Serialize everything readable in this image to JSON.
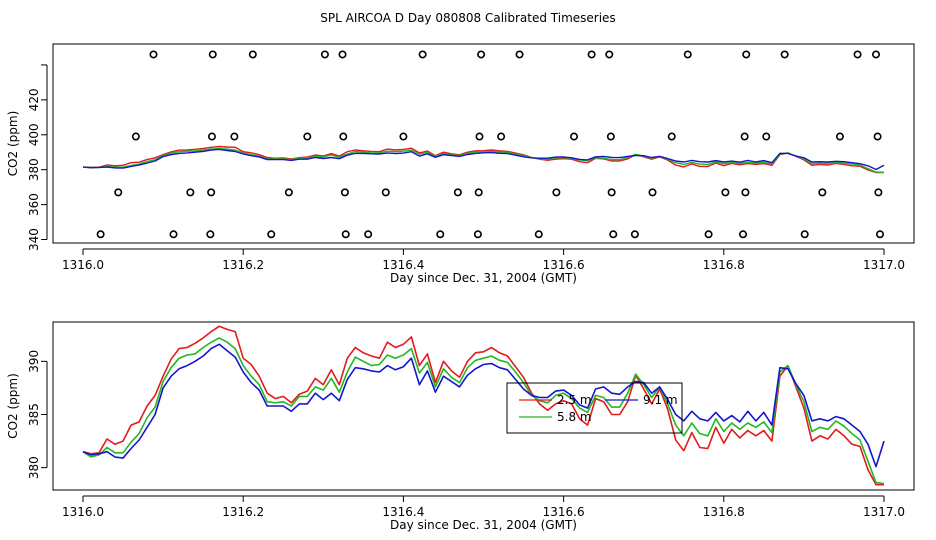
{
  "title": "SPL AIRCOA D  Day 080808  Calibrated Timeseries",
  "colors": {
    "red": "#e41a1c",
    "green": "#22b822",
    "blue": "#1515d0",
    "axis": "#000000"
  },
  "chart_data": [
    {
      "type": "scatter+line",
      "xlabel": "Day since Dec. 31, 2004 (GMT)",
      "ylabel": "CO2 (ppm)",
      "xlim": [
        1316.0,
        1317.0
      ],
      "ylim": [
        338,
        452
      ],
      "xticks": [
        1316.0,
        1316.2,
        1316.4,
        1316.6,
        1316.8,
        1317.0
      ],
      "xtick_labels": [
        "1316.0",
        "1316.2",
        "1316.4",
        "1316.6",
        "1316.8",
        "1317.0"
      ],
      "yticks": [
        340,
        360,
        380,
        400,
        420,
        440
      ],
      "ytick_labels": [
        "340",
        "360",
        "380",
        "400",
        "420",
        ""
      ],
      "points": {
        "x": [
          1316.088,
          1316.162,
          1316.212,
          1316.302,
          1316.324,
          1316.424,
          1316.497,
          1316.545,
          1316.635,
          1316.657,
          1316.755,
          1316.828,
          1316.876,
          1316.967,
          1316.99,
          1316.066,
          1316.161,
          1316.189,
          1316.28,
          1316.325,
          1316.4,
          1316.495,
          1316.522,
          1316.613,
          1316.659,
          1316.735,
          1316.826,
          1316.853,
          1316.945,
          1316.992,
          1316.044,
          1316.134,
          1316.16,
          1316.257,
          1316.327,
          1316.378,
          1316.468,
          1316.494,
          1316.591,
          1316.66,
          1316.711,
          1316.802,
          1316.827,
          1316.923,
          1316.993,
          1316.022,
          1316.113,
          1316.159,
          1316.235,
          1316.328,
          1316.356,
          1316.446,
          1316.493,
          1316.569,
          1316.662,
          1316.689,
          1316.781,
          1316.824,
          1316.901,
          1316.995
        ],
        "y": [
          446,
          446,
          446,
          446,
          446,
          446,
          446,
          446,
          446,
          446,
          446,
          446,
          446,
          446,
          446,
          399,
          399,
          399,
          399,
          399,
          399,
          399,
          399,
          399,
          399,
          399,
          399,
          399,
          399,
          399,
          367,
          367,
          367,
          367,
          367,
          367,
          367,
          367,
          367,
          367,
          367,
          367,
          367,
          367,
          367,
          343,
          343,
          343,
          343,
          343,
          343,
          343,
          343,
          343,
          343,
          343,
          343,
          343,
          343,
          343
        ]
      }
    },
    {
      "type": "line",
      "xlabel": "Day since Dec. 31, 2004 (GMT)",
      "ylabel": "CO2 (ppm)",
      "xlim": [
        1316.0,
        1317.0
      ],
      "ylim": [
        377.9,
        393.7
      ],
      "xticks": [
        1316.0,
        1316.2,
        1316.4,
        1316.6,
        1316.8,
        1317.0
      ],
      "xtick_labels": [
        "1316.0",
        "1316.2",
        "1316.4",
        "1316.6",
        "1316.8",
        "1317.0"
      ],
      "yticks": [
        380,
        385,
        390
      ],
      "ytick_labels": [
        "380",
        "385",
        "390"
      ],
      "legend": {
        "placement": "center-right",
        "entries": [
          "2.5 m",
          "9.1 m",
          "5.8 m"
        ]
      },
      "x": [
        1316.0,
        1316.01,
        1316.02,
        1316.03,
        1316.04,
        1316.05,
        1316.06,
        1316.07,
        1316.08,
        1316.09,
        1316.1,
        1316.11,
        1316.12,
        1316.13,
        1316.14,
        1316.15,
        1316.16,
        1316.17,
        1316.18,
        1316.19,
        1316.2,
        1316.21,
        1316.22,
        1316.23,
        1316.24,
        1316.25,
        1316.26,
        1316.27,
        1316.28,
        1316.29,
        1316.3,
        1316.31,
        1316.32,
        1316.33,
        1316.34,
        1316.35,
        1316.36,
        1316.37,
        1316.38,
        1316.39,
        1316.4,
        1316.41,
        1316.42,
        1316.43,
        1316.44,
        1316.45,
        1316.46,
        1316.47,
        1316.48,
        1316.49,
        1316.5,
        1316.51,
        1316.52,
        1316.53,
        1316.54,
        1316.55,
        1316.56,
        1316.57,
        1316.58,
        1316.59,
        1316.6,
        1316.61,
        1316.62,
        1316.63,
        1316.64,
        1316.65,
        1316.66,
        1316.67,
        1316.68,
        1316.69,
        1316.7,
        1316.71,
        1316.72,
        1316.73,
        1316.74,
        1316.75,
        1316.76,
        1316.77,
        1316.78,
        1316.79,
        1316.8,
        1316.81,
        1316.82,
        1316.83,
        1316.84,
        1316.85,
        1316.86,
        1316.87,
        1316.88,
        1316.89,
        1316.9,
        1316.91,
        1316.92,
        1316.93,
        1316.94,
        1316.95,
        1316.96,
        1316.97,
        1316.98,
        1316.99,
        1317.0
      ],
      "series": [
        {
          "name": "2.5 m",
          "color": "red",
          "values": [
            381.5,
            381.3,
            381.4,
            382.7,
            382.2,
            382.5,
            384.0,
            384.3,
            385.8,
            386.8,
            388.6,
            390.2,
            391.2,
            391.3,
            391.7,
            392.2,
            392.8,
            393.3,
            393.0,
            392.8,
            390.3,
            389.7,
            388.6,
            387.0,
            386.5,
            386.7,
            386.1,
            386.9,
            387.2,
            388.4,
            387.8,
            389.2,
            387.8,
            390.3,
            391.3,
            390.8,
            390.5,
            390.3,
            391.8,
            391.3,
            391.6,
            392.3,
            389.6,
            390.7,
            388.0,
            390.0,
            389.1,
            388.5,
            390.0,
            390.8,
            390.9,
            391.3,
            390.8,
            390.5,
            389.5,
            388.5,
            387.0,
            386.0,
            385.4,
            386.0,
            386.3,
            386.0,
            384.6,
            384.0,
            386.5,
            386.2,
            385.0,
            385.0,
            386.2,
            388.7,
            387.4,
            386.0,
            387.4,
            385.5,
            382.6,
            381.6,
            383.3,
            381.9,
            381.8,
            383.8,
            382.3,
            383.6,
            382.8,
            383.5,
            383.0,
            383.5,
            382.5,
            388.6,
            389.6,
            387.6,
            385.6,
            382.5,
            383.0,
            382.7,
            383.6,
            383.0,
            382.2,
            382.0,
            379.8,
            378.4,
            378.4
          ]
        },
        {
          "name": "5.8 m",
          "color": "green",
          "values": [
            381.5,
            381.0,
            381.2,
            381.9,
            381.4,
            381.4,
            382.4,
            383.2,
            384.7,
            385.7,
            388.1,
            389.4,
            390.3,
            390.6,
            390.7,
            391.3,
            391.8,
            392.2,
            391.8,
            391.2,
            389.6,
            388.6,
            387.8,
            386.2,
            386.1,
            386.2,
            385.8,
            386.7,
            386.7,
            387.6,
            387.3,
            388.4,
            387.1,
            389.0,
            390.4,
            390.0,
            389.6,
            389.7,
            390.6,
            390.3,
            390.6,
            391.2,
            388.9,
            389.9,
            387.6,
            389.3,
            388.5,
            388.0,
            389.4,
            390.1,
            390.3,
            390.5,
            390.1,
            389.9,
            389.0,
            388.0,
            386.8,
            386.3,
            386.1,
            386.8,
            387.0,
            386.5,
            385.6,
            385.2,
            386.8,
            386.6,
            385.7,
            385.7,
            387.0,
            388.8,
            387.8,
            386.6,
            387.6,
            386.0,
            384.0,
            383.0,
            384.2,
            383.2,
            383.0,
            384.6,
            383.4,
            384.2,
            383.6,
            384.2,
            383.8,
            384.3,
            383.3,
            389.0,
            389.6,
            387.8,
            386.2,
            383.4,
            383.8,
            383.6,
            384.4,
            383.9,
            383.2,
            382.6,
            380.6,
            378.6,
            378.5
          ]
        },
        {
          "name": "9.1 m",
          "color": "blue",
          "values": [
            381.5,
            381.2,
            381.3,
            381.5,
            381.0,
            380.9,
            381.8,
            382.6,
            383.8,
            385.0,
            387.5,
            388.6,
            389.3,
            389.6,
            390.0,
            390.5,
            391.2,
            391.6,
            391.0,
            390.4,
            389.0,
            388.0,
            387.3,
            385.8,
            385.8,
            385.8,
            385.3,
            386.0,
            386.0,
            387.0,
            386.4,
            387.0,
            386.3,
            388.3,
            389.4,
            389.3,
            389.1,
            389.0,
            389.6,
            389.2,
            389.5,
            390.3,
            387.8,
            389.1,
            387.1,
            388.6,
            388.1,
            387.6,
            388.7,
            389.3,
            389.7,
            389.8,
            389.4,
            389.2,
            388.3,
            387.4,
            386.8,
            386.6,
            386.6,
            387.2,
            387.3,
            386.8,
            385.9,
            385.6,
            387.4,
            387.6,
            387.0,
            386.9,
            387.6,
            388.1,
            388.0,
            387.0,
            387.6,
            386.4,
            385.0,
            384.4,
            385.3,
            384.6,
            384.4,
            385.2,
            384.4,
            384.9,
            384.3,
            385.3,
            384.4,
            385.2,
            384.0,
            389.4,
            389.3,
            387.9,
            386.8,
            384.4,
            384.6,
            384.4,
            384.8,
            384.6,
            384.0,
            383.4,
            382.2,
            380.1,
            382.5
          ]
        }
      ]
    }
  ]
}
